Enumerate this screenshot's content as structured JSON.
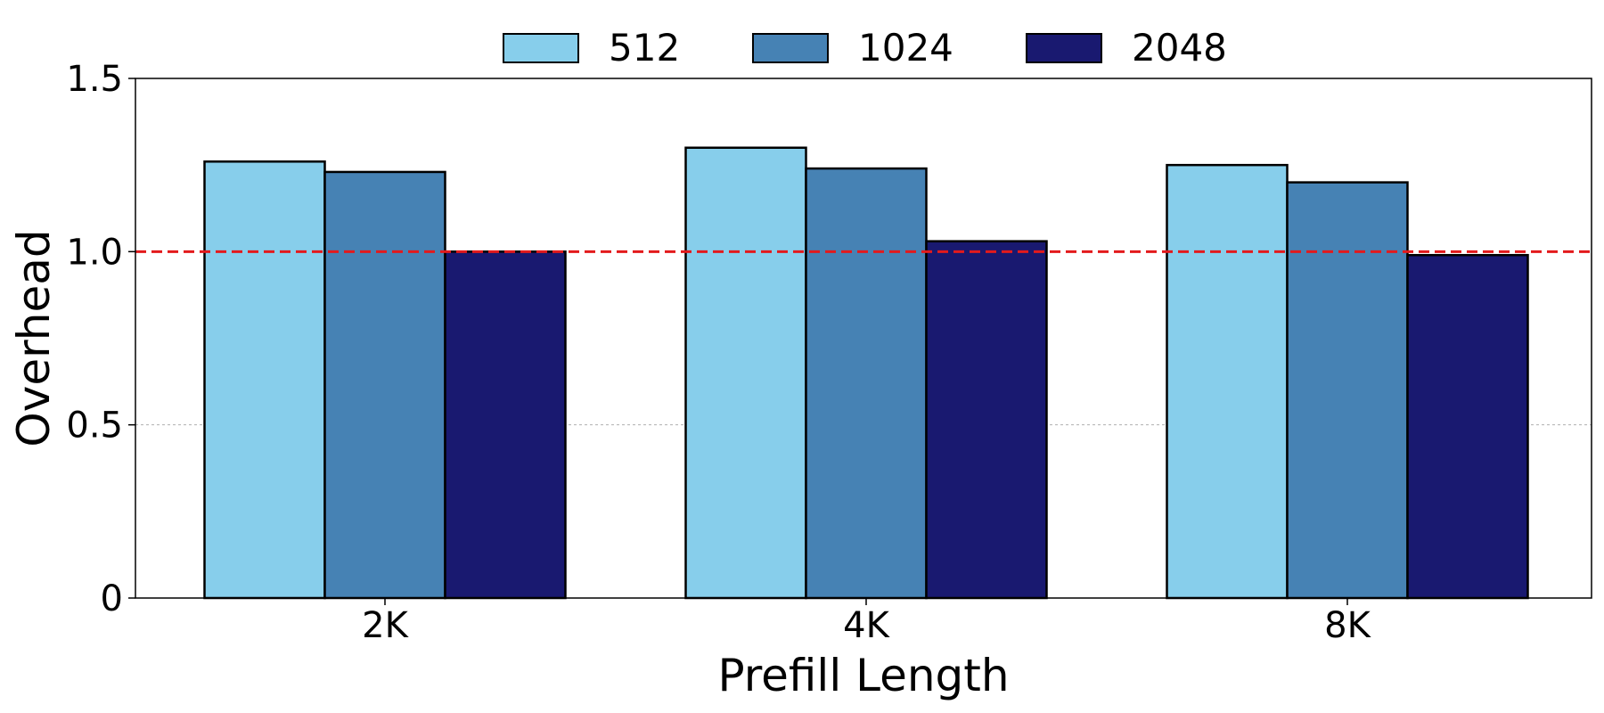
{
  "chart_data": {
    "type": "bar",
    "categories": [
      "2K",
      "4K",
      "8K"
    ],
    "series": [
      {
        "name": "512",
        "color": "#87CEEB",
        "values": [
          1.26,
          1.3,
          1.25
        ]
      },
      {
        "name": "1024",
        "color": "#4682B4",
        "values": [
          1.23,
          1.24,
          1.2
        ]
      },
      {
        "name": "2048",
        "color": "#191970",
        "values": [
          1.0,
          1.03,
          0.99
        ]
      }
    ],
    "xlabel": "Prefill Length",
    "ylabel": "Overhead",
    "ylim": [
      0,
      1.5
    ],
    "yticks": [
      0,
      0.5,
      1.0,
      1.5
    ],
    "ytick_labels": [
      "0",
      "0.5",
      "1.0",
      "1.5"
    ],
    "reference_line": {
      "y": 1.0,
      "color": "#E31A1C",
      "style": "dashed"
    },
    "grid": "horizontal-dotted",
    "legend_position": "top-center"
  }
}
